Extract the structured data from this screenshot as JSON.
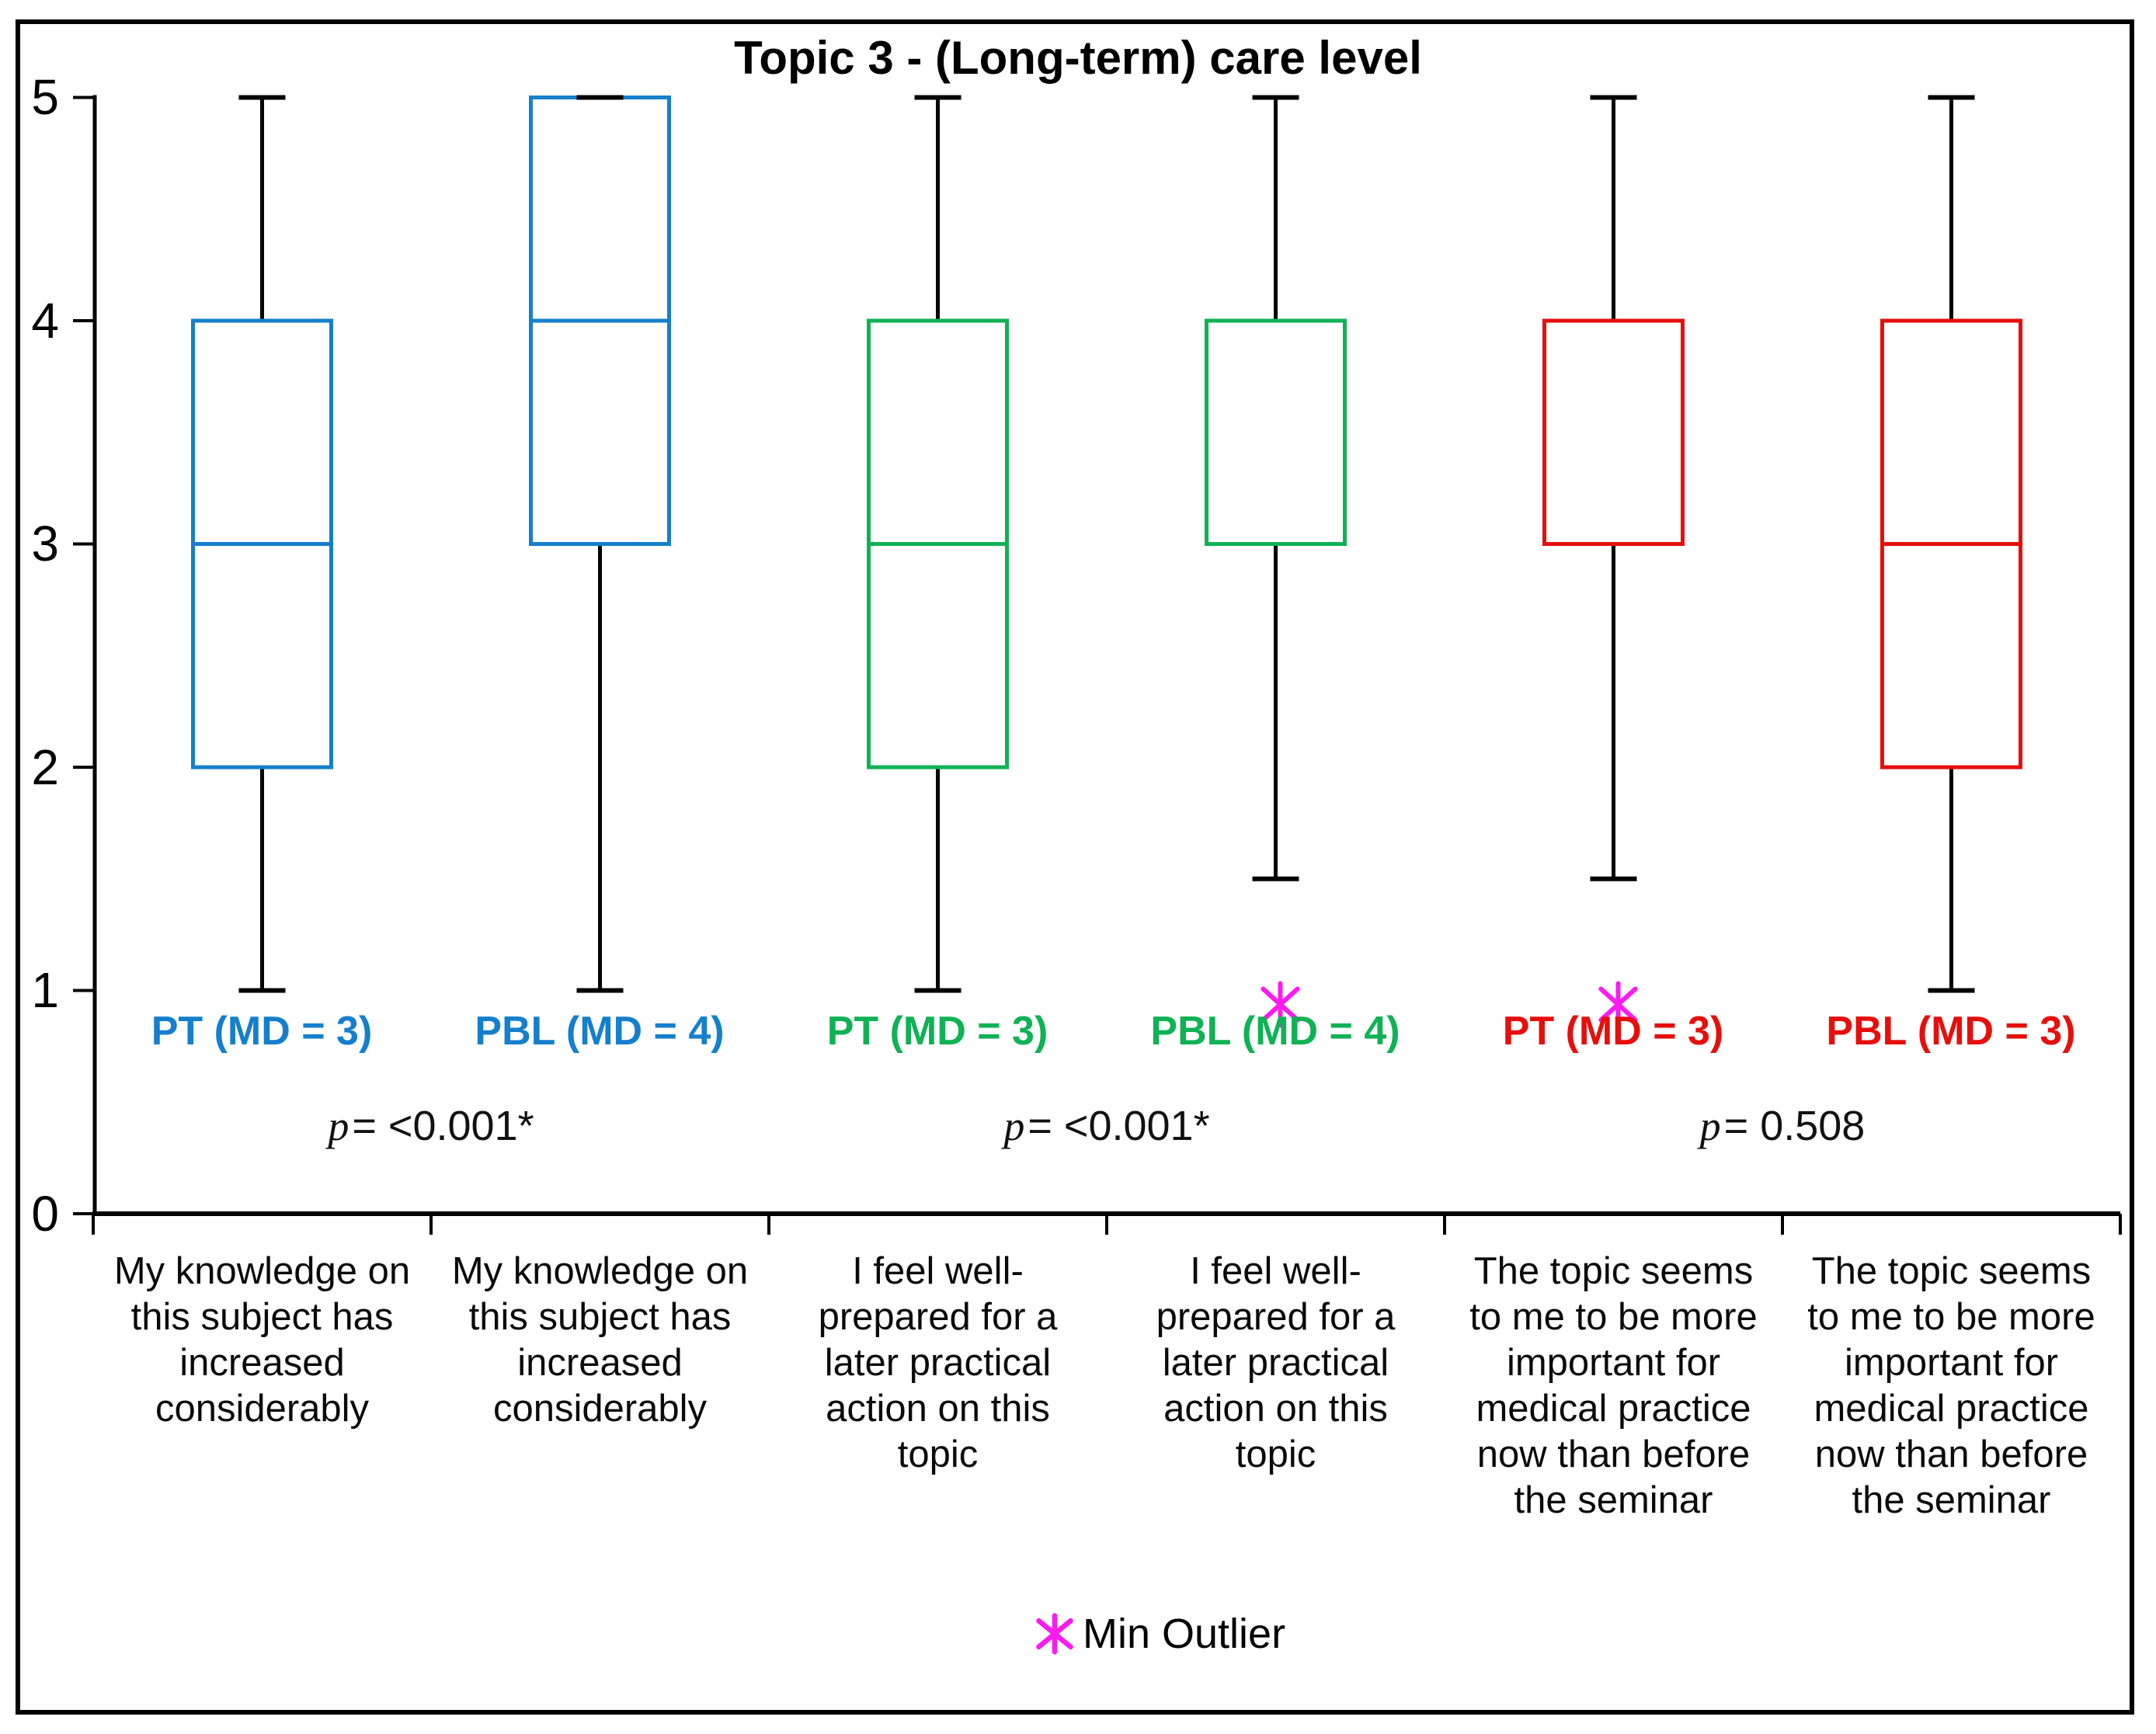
{
  "chart_data": {
    "type": "box",
    "title": "Topic 3 - (Long-term) care level",
    "ylim": [
      0,
      5
    ],
    "yticks": [
      "0",
      "1",
      "2",
      "3",
      "4",
      "5"
    ],
    "grid": false,
    "legend": {
      "marker": "min-outlier-asterisk",
      "label": "Min Outlier",
      "marker_color": "#FA1CEE",
      "position": "bottom-center"
    },
    "p_values": [
      {
        "p_prefix": "p",
        "p_text": "= <0.001*"
      },
      {
        "p_prefix": "p",
        "p_text": "= <0.001*"
      },
      {
        "p_prefix": "p",
        "p_text": "= 0.508"
      }
    ],
    "boxes": [
      {
        "label": "PT (MD = 3)",
        "color": "#157FCC",
        "group": "PT",
        "median_annotation": "MD = 3",
        "category": "My knowledge on\nthis subject has\nincreased\nconsiderably",
        "whisker_low": 1,
        "q1": 2,
        "median": 3,
        "q3": 4,
        "whisker_high": 5,
        "outlier_min": null
      },
      {
        "label": "PBL (MD = 4)",
        "color": "#157FCC",
        "group": "PBL",
        "median_annotation": "MD = 4",
        "category": "My knowledge on\nthis subject has\nincreased\nconsiderably",
        "whisker_low": 1,
        "q1": 3,
        "median": 4,
        "q3": 5,
        "whisker_high": 5,
        "outlier_min": null
      },
      {
        "label": "PT (MD = 3)",
        "color": "#0FB254",
        "group": "PT",
        "median_annotation": "MD = 3",
        "category": "I feel well-\nprepared for a\nlater practical\naction on this\ntopic",
        "whisker_low": 1,
        "q1": 2,
        "median": 3,
        "q3": 4,
        "whisker_high": 5,
        "outlier_min": null
      },
      {
        "label": "PBL (MD = 4)",
        "color": "#0FB254",
        "group": "PBL",
        "median_annotation": "MD = 4",
        "category": "I feel well-\nprepared for a\nlater practical\naction on this\ntopic",
        "whisker_low": 1.5,
        "q1": 3,
        "median": 4,
        "q3": 4,
        "whisker_high": 5,
        "outlier_min": 1
      },
      {
        "label": "PT (MD = 3)",
        "color": "#E60F0C",
        "group": "PT",
        "median_annotation": "MD = 3",
        "category": "The topic seems\nto me to be more\nimportant for\nmedical practice\nnow than before\nthe seminar",
        "whisker_low": 1.5,
        "q1": 3,
        "median": 3,
        "q3": 4,
        "whisker_high": 5,
        "outlier_min": 1
      },
      {
        "label": "PBL (MD = 3)",
        "color": "#E60F0C",
        "group": "PBL",
        "median_annotation": "MD = 3",
        "category": "The topic seems\nto me to be more\nimportant for\nmedical practice\nnow than before\nthe seminar",
        "whisker_low": 1,
        "q1": 2,
        "median": 3,
        "q3": 4,
        "whisker_high": 5,
        "outlier_min": null
      }
    ]
  }
}
